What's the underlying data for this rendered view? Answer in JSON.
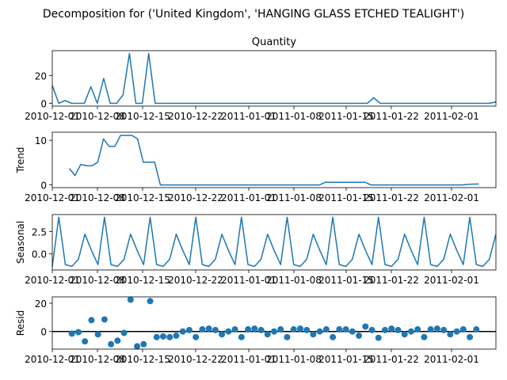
{
  "figure": {
    "suptitle": "Decomposition for ('United Kingdom', 'HANGING GLASS ETCHED TEALIGHT')",
    "line_color": "#1f77b4",
    "x_tick_labels": [
      "2010-12-01",
      "2010-12-08",
      "2010-12-15",
      "2010-12-22",
      "2011-01-01",
      "2011-01-08",
      "2011-01-15",
      "2011-01-22",
      "2011-02-01"
    ]
  },
  "chart_data": [
    {
      "type": "line",
      "title": "Quantity",
      "ylabel": "",
      "ylim": [
        -2,
        38
      ],
      "yticks": [
        0,
        20
      ],
      "values": [
        13,
        0,
        2,
        0,
        0,
        0,
        12,
        0,
        18,
        0,
        0,
        6,
        36,
        0,
        0,
        36,
        0,
        0,
        0,
        0,
        0,
        0,
        0,
        0,
        0,
        0,
        0,
        0,
        0,
        0,
        0,
        0,
        0,
        0,
        0,
        0,
        0,
        0,
        0,
        0,
        0,
        0,
        0,
        0,
        0,
        0,
        0,
        0,
        0,
        0,
        4,
        0,
        0,
        0,
        0,
        0,
        0,
        0,
        0,
        0,
        0,
        0,
        0,
        0,
        0,
        0,
        0,
        0,
        0,
        1
      ]
    },
    {
      "type": "line",
      "title": "",
      "ylabel": "Trend",
      "ylim": [
        -0.6,
        11.8
      ],
      "yticks": [
        0,
        10
      ],
      "values": [
        null,
        null,
        null,
        3.7,
        2.1,
        4.6,
        4.3,
        4.3,
        5.1,
        10.3,
        8.6,
        8.6,
        11.1,
        11.1,
        11.1,
        10.3,
        5.1,
        5.1,
        5.1,
        0,
        0,
        0,
        0,
        0,
        0,
        0,
        0,
        0,
        0,
        0,
        0,
        0,
        0,
        0,
        0,
        0,
        0,
        0,
        0,
        0,
        0,
        0,
        0,
        0,
        0,
        0,
        0,
        0,
        0.6,
        0.6,
        0.6,
        0.6,
        0.6,
        0.6,
        0.6,
        0.6,
        0,
        0,
        0,
        0,
        0,
        0,
        0,
        0,
        0,
        0,
        0,
        0,
        0,
        0,
        0,
        0,
        0,
        0.1,
        0.2,
        0.2,
        null,
        null,
        null
      ]
    },
    {
      "type": "line",
      "title": "",
      "ylabel": "Seasonal",
      "ylim": [
        -1.8,
        4.4
      ],
      "yticks": [
        0.0,
        2.5
      ],
      "values": [
        -1.4,
        4.1,
        -1.2,
        -1.4,
        -0.6,
        2.2,
        0.4,
        -1.2,
        4.1,
        -1.2,
        -1.4,
        -0.6,
        2.2,
        0.4,
        -1.2,
        4.1,
        -1.2,
        -1.4,
        -0.6,
        2.2,
        0.4,
        -1.2,
        4.1,
        -1.2,
        -1.4,
        -0.6,
        2.2,
        0.4,
        -1.2,
        4.1,
        -1.2,
        -1.4,
        -0.6,
        2.2,
        0.4,
        -1.2,
        4.1,
        -1.2,
        -1.4,
        -0.6,
        2.2,
        0.4,
        -1.2,
        4.1,
        -1.2,
        -1.4,
        -0.6,
        2.2,
        0.4,
        -1.2,
        4.1,
        -1.2,
        -1.4,
        -0.6,
        2.2,
        0.4,
        -1.2,
        4.1,
        -1.2,
        -1.4,
        -0.6,
        2.2,
        0.4,
        -1.2,
        4.1,
        -1.2,
        -1.4,
        -0.6,
        2.2
      ]
    },
    {
      "type": "scatter",
      "title": "",
      "ylabel": "Resid",
      "ylim": [
        -12.5,
        24.5
      ],
      "yticks": [
        0,
        20
      ],
      "baseline": 0,
      "values": [
        null,
        null,
        null,
        -1.5,
        -0.5,
        -7,
        8,
        -2,
        8.5,
        -9,
        -6.5,
        -1,
        22.5,
        -10.5,
        -9,
        21.5,
        -4,
        -3.5,
        -4,
        -3,
        0,
        1,
        -4,
        1.5,
        2,
        1,
        -2,
        0,
        1.5,
        -4,
        1.5,
        2,
        1,
        -2,
        0,
        1.5,
        -4,
        1.5,
        2,
        1,
        -2,
        0,
        1.5,
        -4,
        1.5,
        1.5,
        0,
        -3,
        3.5,
        1,
        -4.5,
        1,
        2,
        1,
        -2,
        0,
        1.5,
        -4,
        1.5,
        2,
        1,
        -2,
        0,
        1.5,
        -4,
        1.5,
        null,
        null,
        null
      ]
    }
  ]
}
